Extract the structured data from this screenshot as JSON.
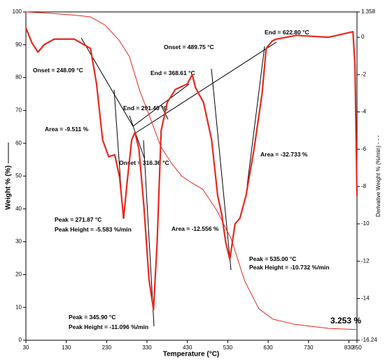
{
  "chart_data": {
    "type": "line",
    "x_label": "Temperature (°C)",
    "y_label": "Weight % (%) ———",
    "y2_label": "Derivative Weight % (%/min) - - -",
    "x": [
      30,
      45,
      60,
      75,
      100,
      130,
      150,
      170,
      190,
      205,
      220,
      226,
      235,
      250,
      260,
      262,
      272,
      282,
      286,
      292,
      300,
      310,
      312,
      322,
      335,
      340,
      346,
      355,
      364,
      365,
      380,
      390,
      400,
      416,
      430,
      440,
      442,
      450,
      468,
      470,
      490,
      503,
      505,
      515,
      525,
      535,
      538,
      548,
      560,
      572,
      575,
      595,
      607,
      615,
      625,
      640,
      642,
      650,
      694,
      700,
      780,
      820,
      840,
      845,
      850
    ],
    "series": [
      {
        "name": "Weight %",
        "color": "#e8281e",
        "width": 1,
        "values": [
          100,
          null,
          null,
          null,
          99.5,
          null,
          99,
          null,
          98.5,
          null,
          null,
          96,
          null,
          null,
          91.5,
          null,
          null,
          null,
          86.5,
          null,
          null,
          null,
          76,
          null,
          null,
          67,
          null,
          null,
          59,
          null,
          null,
          54,
          null,
          50,
          null,
          48,
          null,
          null,
          46,
          null,
          null,
          39.5,
          null,
          null,
          null,
          null,
          31,
          null,
          null,
          18,
          null,
          null,
          9.6,
          null,
          null,
          null,
          6.4,
          null,
          4.9,
          null,
          3.6,
          null,
          null,
          null,
          3.25
        ]
      },
      {
        "name": "Derivative Weight %",
        "color": "#e8281e",
        "width": 2.2,
        "axis": "y2",
        "values": [
          0.5,
          -0.3,
          -0.8,
          -0.4,
          -0.1,
          null,
          -0.1,
          null,
          -0.6,
          -2.5,
          -5.5,
          null,
          -6.4,
          -6.3,
          null,
          -7.5,
          -9.7,
          -7.5,
          null,
          -5.5,
          -5.1,
          -6,
          null,
          -9,
          -13,
          null,
          -14.6,
          -11,
          null,
          -5,
          -3.5,
          null,
          -2.8,
          null,
          -2.5,
          null,
          -2,
          -2.7,
          null,
          -3.5,
          -5.5,
          null,
          -8.5,
          -9.5,
          -11,
          -11.9,
          null,
          -10,
          -9.7,
          null,
          -8.5,
          -6,
          null,
          -3,
          -0.6,
          -0.2,
          null,
          -0.1,
          null,
          0.1,
          0,
          0.2,
          0.3,
          -1.5,
          -8.5
        ]
      }
    ],
    "xlim": [
      30,
      850
    ],
    "xticks": [
      30,
      130,
      230,
      330,
      430,
      530,
      630,
      730,
      830,
      850
    ],
    "ylim": [
      0,
      100
    ],
    "yticks": [
      0,
      10,
      20,
      30,
      40,
      50,
      60,
      70,
      80,
      90,
      100
    ],
    "y2lim": [
      -16.24,
      1.358
    ],
    "y2ticks": [
      1.358,
      0,
      -2,
      -4,
      -6,
      -8,
      -10,
      -12,
      -14,
      -16.24
    ],
    "annotations": [
      "Onset = 248.09 °C",
      "Area = -9.511 %",
      "End = 291.40 °C",
      "Onset = 316.36 °C",
      "Peak = 271.87 °C",
      "Peak Height = -5.583 %/min",
      "Peak = 345.90 °C",
      "Peak Height = -11.096 %/min",
      "End = 368.61 °C",
      "Onset = 489.75 °C",
      "End = 622.80 °C",
      "Area = -32.733 %",
      "Area = -12.556 %",
      "Peak = 535.00 °C",
      "Peak Height = -10.732 %/min",
      "3.253 %"
    ]
  }
}
